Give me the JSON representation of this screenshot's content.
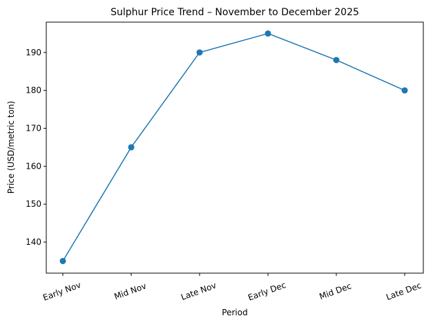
{
  "chart_data": {
    "type": "line",
    "title": "Sulphur Price Trend – November to December 2025",
    "xlabel": "Period",
    "ylabel": "Price (USD/metric ton)",
    "categories": [
      "Early Nov",
      "Mid Nov",
      "Late Nov",
      "Early Dec",
      "Mid Dec",
      "Late Dec"
    ],
    "series": [
      {
        "name": "Sulphur Price",
        "values": [
          135,
          165,
          190,
          195,
          188,
          180
        ],
        "color": "#1f77b4",
        "marker": "circle"
      }
    ],
    "yticks": [
      140,
      150,
      160,
      170,
      180,
      190
    ],
    "ylim": [
      131.8,
      198.0
    ],
    "grid": false,
    "legend": false
  }
}
